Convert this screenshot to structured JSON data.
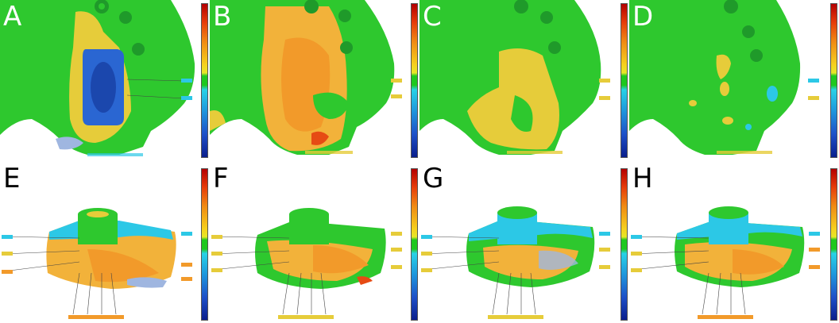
{
  "panels": [
    {
      "id": "A",
      "label": "A"
    },
    {
      "id": "B",
      "label": "B"
    },
    {
      "id": "C",
      "label": "C"
    },
    {
      "id": "D",
      "label": "D"
    },
    {
      "id": "E",
      "label": "E"
    },
    {
      "id": "F",
      "label": "F"
    },
    {
      "id": "G",
      "label": "G"
    },
    {
      "id": "H",
      "label": "H"
    }
  ],
  "colors": {
    "green": "#2ec82e",
    "yellow": "#e6cc3a",
    "orange": "#f29a2a",
    "red": "#e64b14",
    "cyan": "#2cc8e6",
    "blue": "#2a66d2",
    "darkblue": "#163a9c"
  }
}
